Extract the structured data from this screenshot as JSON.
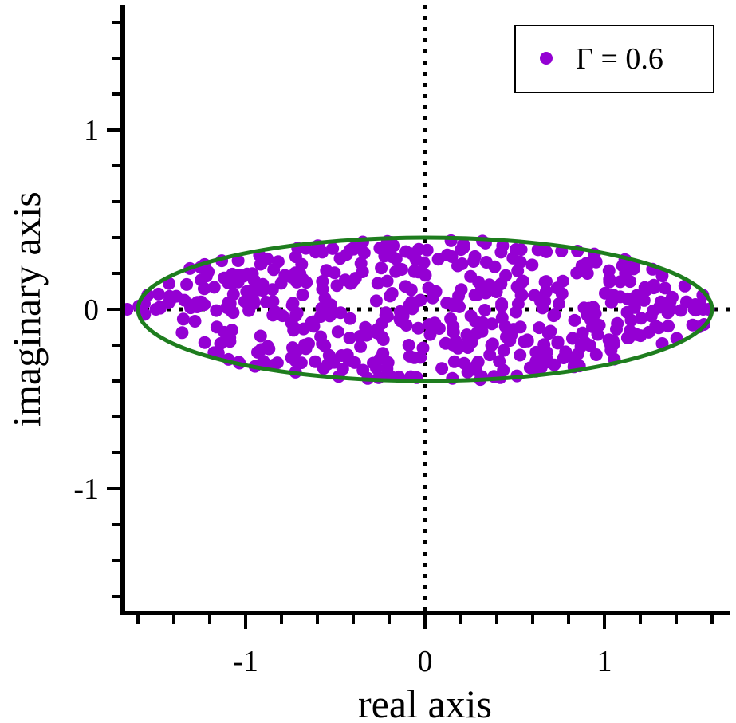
{
  "chart_data": {
    "type": "scatter",
    "xlabel": "real axis",
    "ylabel": "imaginary axis",
    "xlim": [
      -1.72,
      1.72
    ],
    "ylim": [
      -1.72,
      1.72
    ],
    "x_ticks": [
      -1,
      0,
      1
    ],
    "x_tick_labels": [
      "-1",
      "0",
      "1"
    ],
    "y_ticks": [
      -1,
      0,
      1
    ],
    "y_tick_labels": [
      "-1",
      "0",
      "1"
    ],
    "minor_tick_step": 0.2,
    "grid": false,
    "reference_lines": {
      "x": 0,
      "y": 0,
      "style": "dotted"
    },
    "legend": {
      "position": "top-right",
      "entries": [
        {
          "label": "Γ = 0.6",
          "color": "#9400d3"
        }
      ]
    },
    "series": [
      {
        "name": "Γ = 0.6",
        "kind": "points",
        "color": "#9400d3",
        "n_points": 500,
        "distribution": "uniform inside ellipse",
        "center": [
          0,
          0
        ],
        "semi_axes": [
          1.6,
          0.4
        ]
      },
      {
        "kind": "ellipse-boundary",
        "color": "#1e7d1e",
        "center": [
          0,
          0
        ],
        "semi_axes": [
          1.6,
          0.4
        ]
      }
    ]
  }
}
